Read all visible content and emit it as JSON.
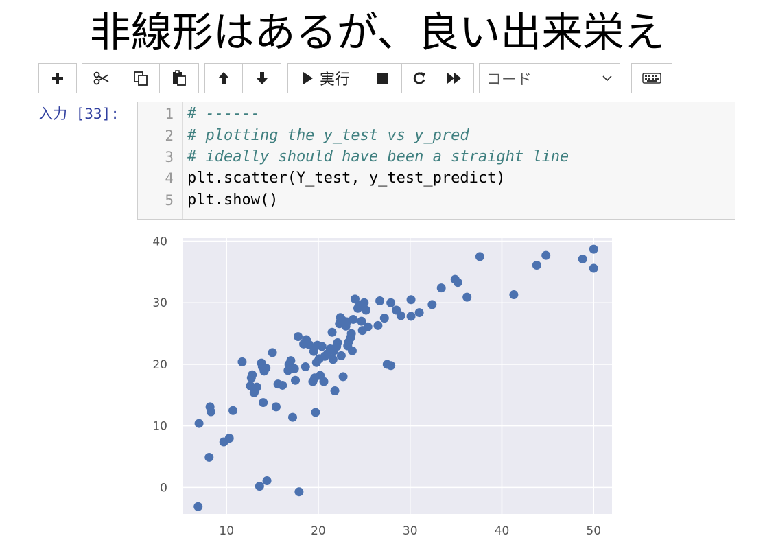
{
  "slide_title": "非線形はあるが、良い出来栄え",
  "toolbar": {
    "run_label": "実行",
    "cell_type": "コード",
    "icons": [
      "plus-icon",
      "scissors-icon",
      "copy-icon",
      "paste-icon",
      "arrow-up-icon",
      "arrow-down-icon",
      "play-icon",
      "stop-icon",
      "restart-icon",
      "fast-forward-icon",
      "chevron-down-icon",
      "keyboard-icon"
    ]
  },
  "cell": {
    "prompt": "入力 [33]:",
    "lines": [
      {
        "no": "1",
        "text": "# ------",
        "kind": "comment"
      },
      {
        "no": "2",
        "text": "# plotting the y_test vs y_pred",
        "kind": "comment"
      },
      {
        "no": "3",
        "text": "# ideally should have been a straight line",
        "kind": "comment"
      },
      {
        "no": "4",
        "text": "plt.scatter(Y_test, y_test_predict)",
        "kind": "plain"
      },
      {
        "no": "5",
        "text": "plt.show()",
        "kind": "plain"
      }
    ]
  },
  "chart_data": {
    "type": "scatter",
    "title": "",
    "xlabel": "",
    "ylabel": "",
    "xlim": [
      5.2,
      52
    ],
    "ylim": [
      -4.3,
      40.5
    ],
    "xticks": [
      10,
      20,
      30,
      40,
      50
    ],
    "yticks": [
      0,
      10,
      20,
      30,
      40
    ],
    "grid": true,
    "colors": {
      "background": "#EAEAF2",
      "grid": "#ffffff",
      "point": "#4C72B0",
      "tick": "#555555"
    },
    "points": [
      [
        6.9,
        -3.1
      ],
      [
        7.0,
        10.4
      ],
      [
        8.1,
        4.9
      ],
      [
        8.2,
        13.1
      ],
      [
        8.3,
        12.3
      ],
      [
        9.7,
        7.4
      ],
      [
        10.3,
        8.0
      ],
      [
        10.7,
        12.5
      ],
      [
        11.7,
        20.4
      ],
      [
        12.6,
        16.5
      ],
      [
        12.7,
        17.8
      ],
      [
        12.8,
        18.3
      ],
      [
        13.0,
        15.4
      ],
      [
        13.1,
        15.7
      ],
      [
        13.3,
        16.3
      ],
      [
        13.6,
        0.2
      ],
      [
        13.8,
        20.2
      ],
      [
        13.9,
        19.6
      ],
      [
        14.0,
        13.8
      ],
      [
        14.1,
        18.9
      ],
      [
        14.3,
        19.4
      ],
      [
        14.4,
        1.1
      ],
      [
        15.0,
        21.9
      ],
      [
        15.4,
        13.1
      ],
      [
        15.6,
        16.8
      ],
      [
        16.1,
        16.6
      ],
      [
        16.7,
        19.0
      ],
      [
        16.8,
        20.0
      ],
      [
        17.0,
        20.6
      ],
      [
        17.2,
        11.4
      ],
      [
        17.4,
        19.3
      ],
      [
        17.5,
        17.4
      ],
      [
        17.8,
        24.5
      ],
      [
        17.9,
        -0.7
      ],
      [
        18.4,
        23.3
      ],
      [
        18.6,
        19.6
      ],
      [
        18.7,
        24.0
      ],
      [
        19.0,
        23.2
      ],
      [
        19.4,
        17.2
      ],
      [
        19.5,
        22.1
      ],
      [
        19.6,
        17.8
      ],
      [
        19.7,
        12.2
      ],
      [
        19.8,
        20.3
      ],
      [
        19.9,
        23.1
      ],
      [
        20.1,
        20.9
      ],
      [
        20.2,
        18.2
      ],
      [
        20.4,
        22.9
      ],
      [
        20.6,
        17.2
      ],
      [
        20.7,
        21.3
      ],
      [
        21.0,
        21.7
      ],
      [
        21.3,
        22.5
      ],
      [
        21.5,
        25.2
      ],
      [
        21.6,
        20.8
      ],
      [
        21.7,
        22.2
      ],
      [
        21.8,
        15.7
      ],
      [
        22.0,
        22.9
      ],
      [
        22.1,
        23.5
      ],
      [
        22.3,
        26.6
      ],
      [
        22.4,
        27.6
      ],
      [
        22.5,
        21.4
      ],
      [
        22.6,
        27.2
      ],
      [
        22.7,
        18.0
      ],
      [
        23.0,
        26.2
      ],
      [
        23.1,
        26.9
      ],
      [
        23.2,
        23.0
      ],
      [
        23.3,
        23.6
      ],
      [
        23.5,
        24.3
      ],
      [
        23.6,
        25.0
      ],
      [
        23.7,
        22.2
      ],
      [
        23.8,
        27.3
      ],
      [
        24.0,
        30.6
      ],
      [
        24.3,
        29.1
      ],
      [
        24.5,
        29.6
      ],
      [
        24.7,
        27.0
      ],
      [
        24.8,
        25.5
      ],
      [
        25.0,
        30.0
      ],
      [
        25.2,
        28.8
      ],
      [
        25.4,
        26.1
      ],
      [
        26.5,
        26.3
      ],
      [
        26.7,
        30.3
      ],
      [
        27.2,
        27.5
      ],
      [
        27.5,
        20.0
      ],
      [
        27.9,
        19.8
      ],
      [
        27.9,
        30.0
      ],
      [
        28.5,
        28.8
      ],
      [
        29.0,
        27.9
      ],
      [
        30.1,
        27.8
      ],
      [
        30.1,
        30.5
      ],
      [
        31.0,
        28.4
      ],
      [
        32.4,
        29.7
      ],
      [
        33.4,
        32.4
      ],
      [
        34.9,
        33.8
      ],
      [
        35.2,
        33.3
      ],
      [
        36.2,
        30.9
      ],
      [
        37.6,
        37.5
      ],
      [
        41.3,
        31.3
      ],
      [
        43.8,
        36.1
      ],
      [
        44.8,
        37.7
      ],
      [
        48.8,
        37.1
      ],
      [
        50.0,
        38.7
      ],
      [
        50.0,
        35.6
      ]
    ]
  }
}
